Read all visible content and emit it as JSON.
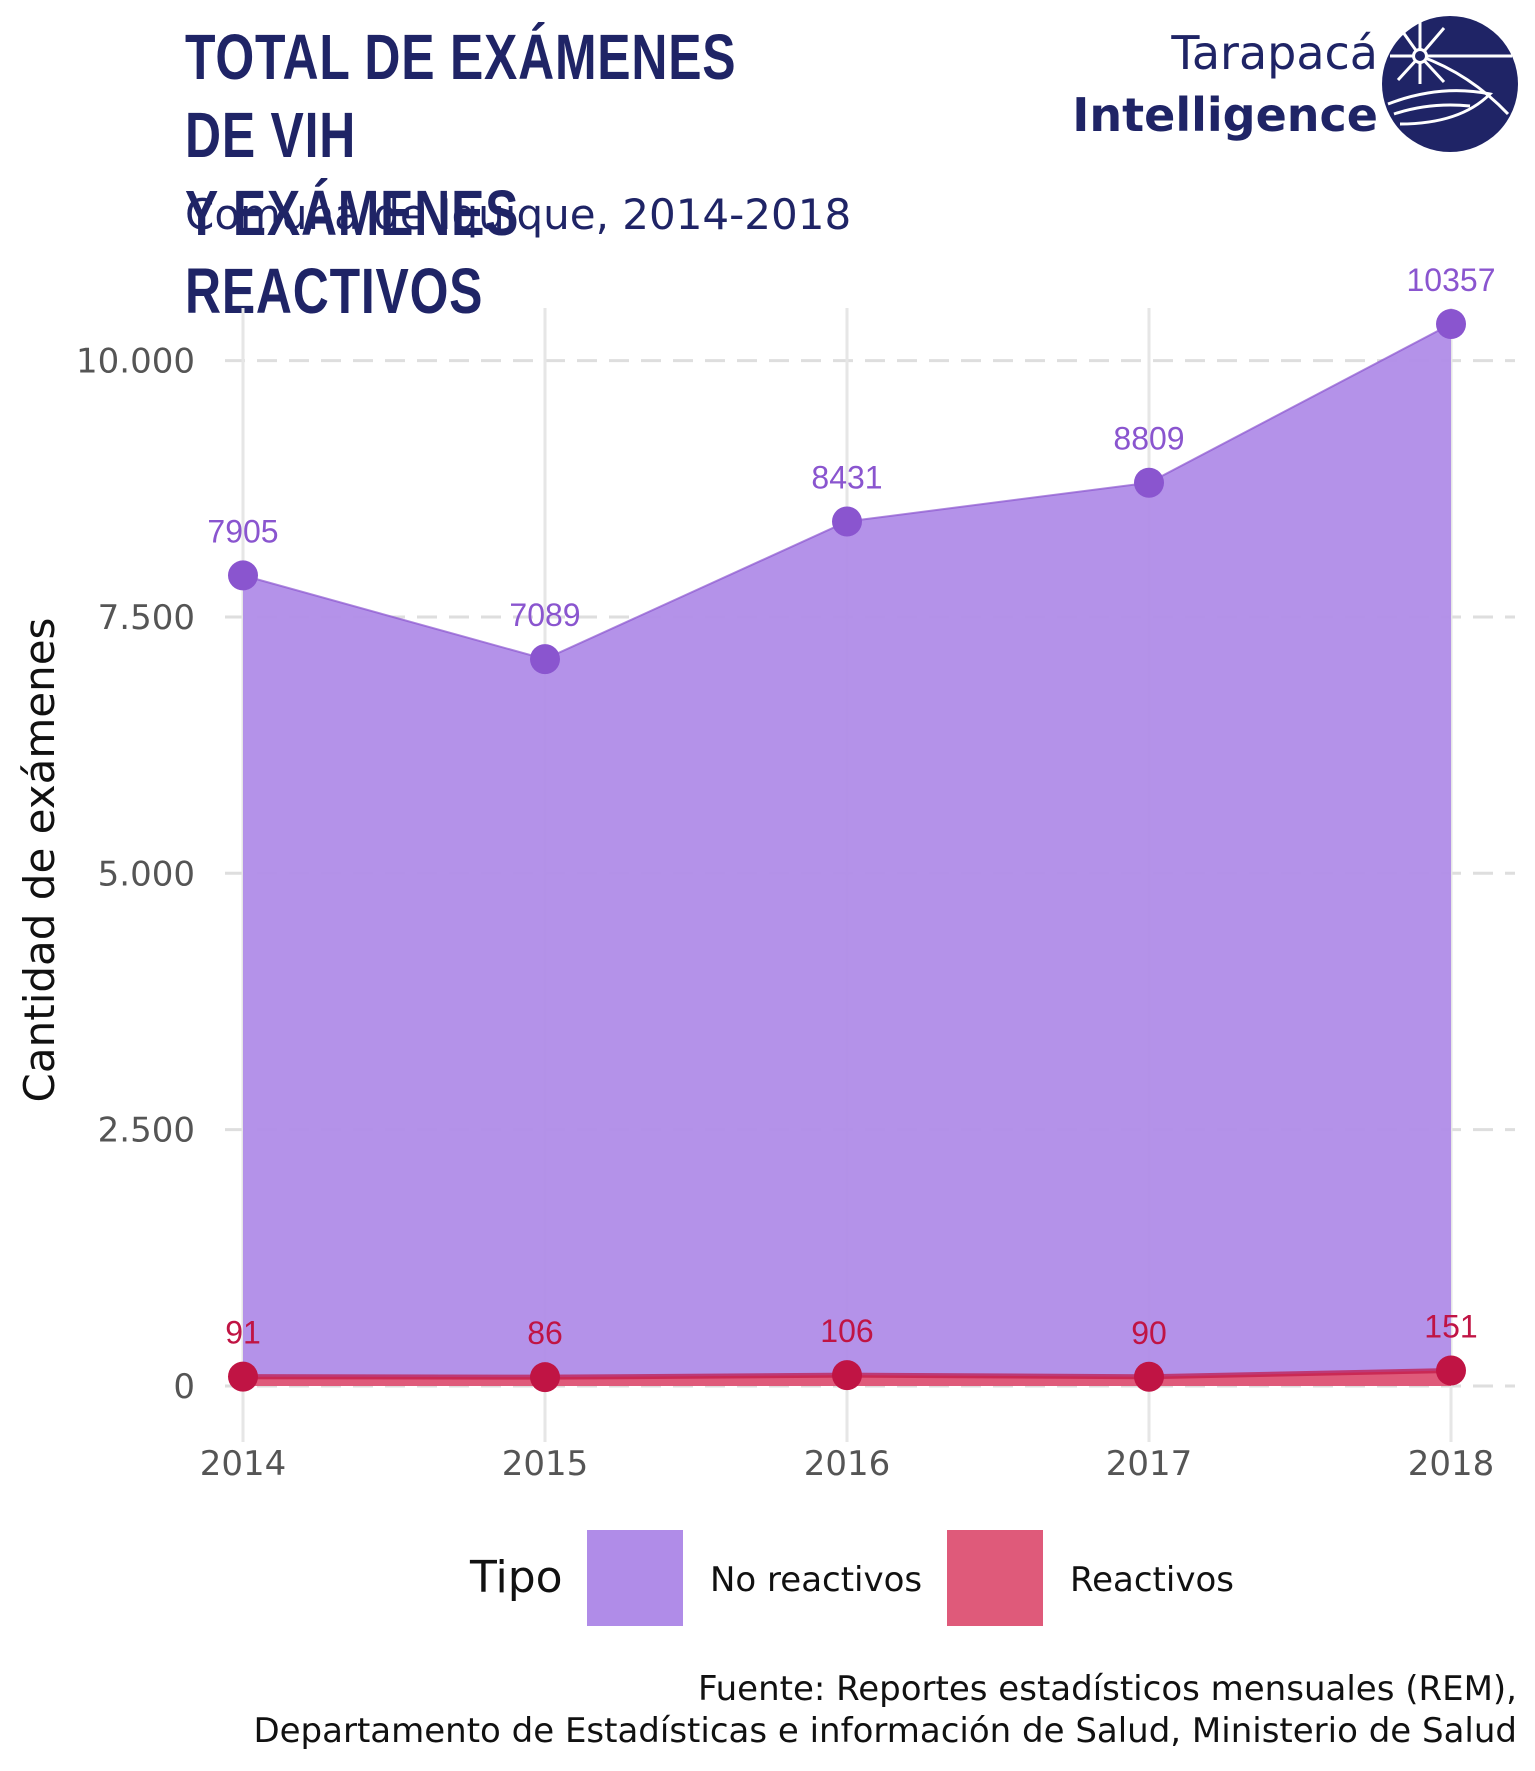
{
  "header": {
    "title_line1": "TOTAL DE EXÁMENES DE VIH",
    "title_line2": "Y EXÁMENES REACTIVOS",
    "subtitle": "Comuna de Iquique, 2014-2018"
  },
  "logo": {
    "line1": "Tarapacá",
    "line2": "Intelligence",
    "icon": "globe-logo-icon",
    "color": "#1f2466"
  },
  "chart_data": {
    "type": "area",
    "categories": [
      "2014",
      "2015",
      "2016",
      "2017",
      "2018"
    ],
    "series": [
      {
        "name": "No reactivos",
        "values": [
          7905,
          7089,
          8431,
          8809,
          10357
        ],
        "color": "#b08ce8",
        "point_color": "#8a55cf"
      },
      {
        "name": "Reactivos",
        "values": [
          91,
          86,
          106,
          90,
          151
        ],
        "color": "#df5a7a",
        "point_color": "#c01444"
      }
    ],
    "ylabel": "Cantidad de exámenes",
    "xlabel": "",
    "ylim": [
      -400,
      10800
    ],
    "yticks": [
      0,
      2500,
      5000,
      7500,
      10000
    ],
    "ytick_labels": [
      "0",
      "2.500",
      "5.000",
      "7.500",
      "10.000"
    ],
    "grid": true,
    "legend_title": "Tipo",
    "legend_position": "bottom"
  },
  "footer": {
    "source_line1": "Fuente: Reportes estadísticos mensuales (REM),",
    "source_line2": "Departamento de Estadísticas e información de Salud, Ministerio de Salud"
  }
}
